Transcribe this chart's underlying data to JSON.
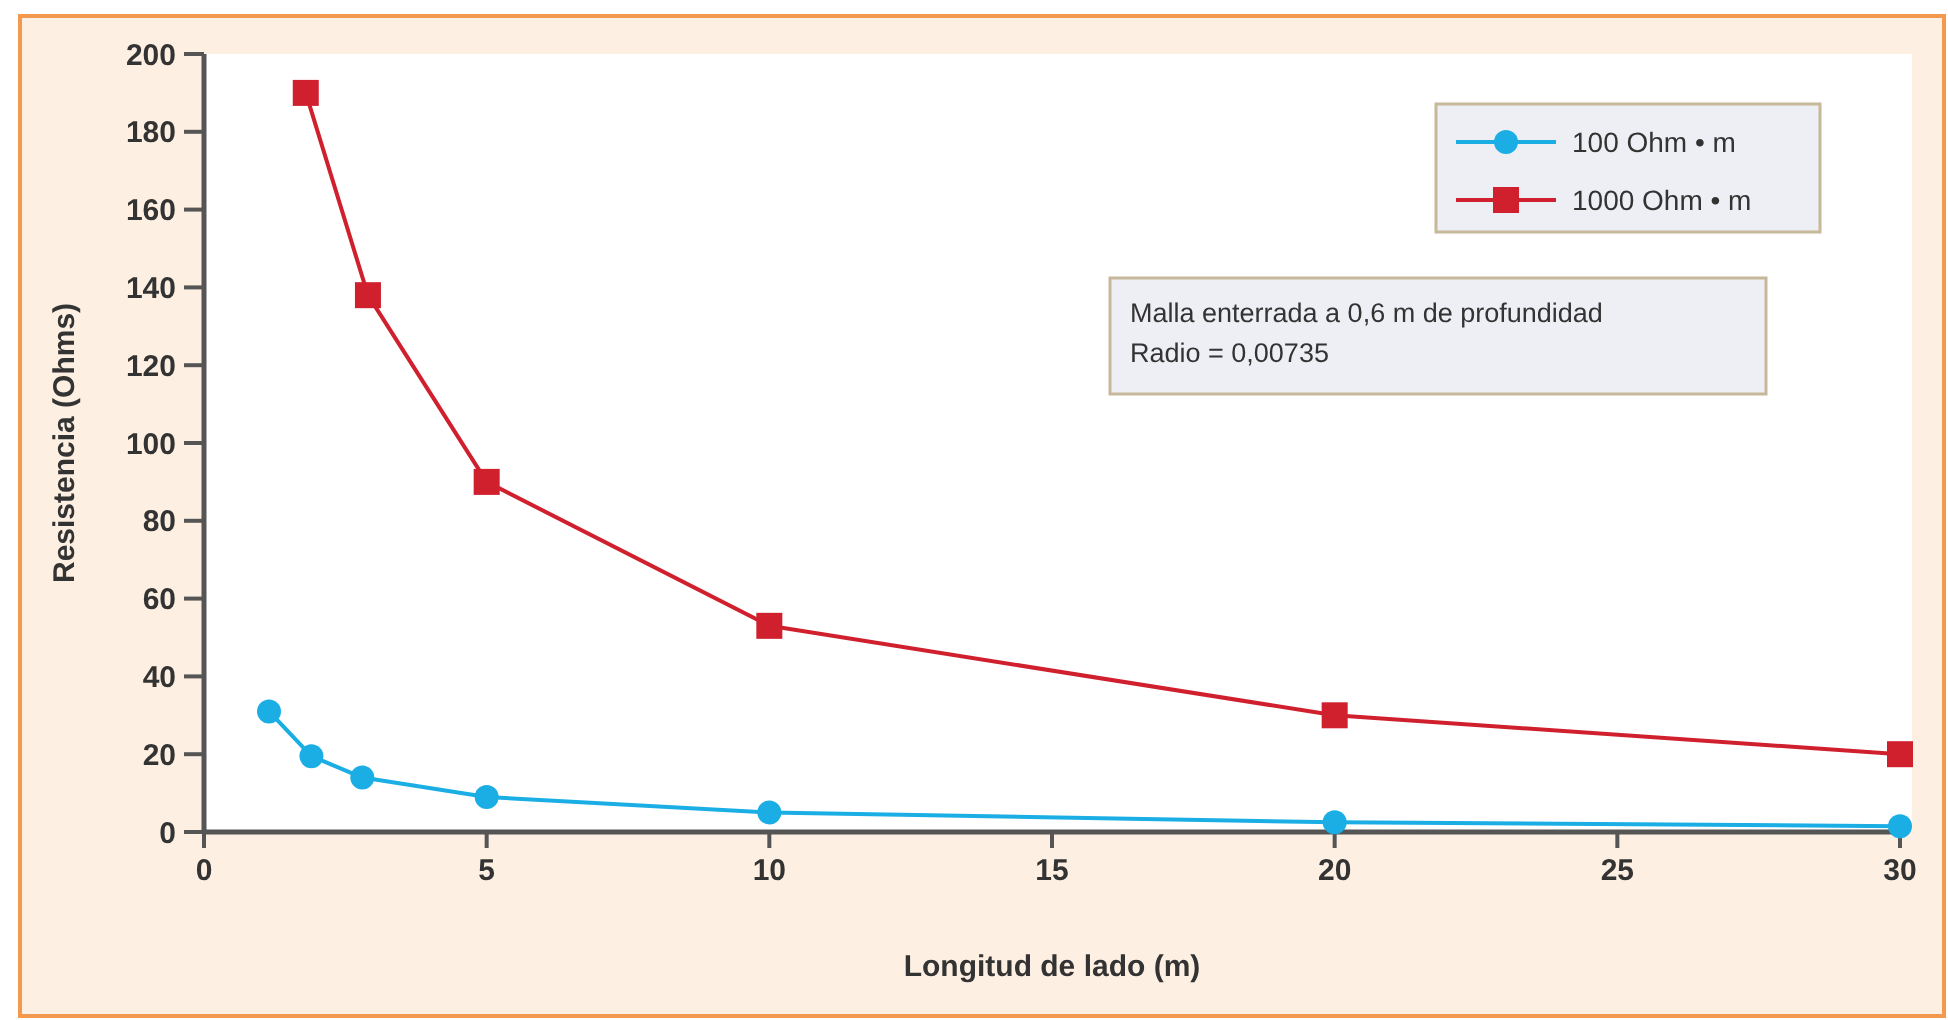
{
  "chart_data": {
    "type": "line",
    "xlabel": "Longitud de lado (m)",
    "ylabel": "Resistencia (Ohms)",
    "xlim": [
      0,
      30
    ],
    "xticks": [
      0,
      5,
      10,
      15,
      20,
      25,
      30
    ],
    "ylim": [
      0,
      200
    ],
    "yticks": [
      0,
      20,
      40,
      60,
      80,
      100,
      120,
      140,
      160,
      180,
      200
    ],
    "series": [
      {
        "name": "100 Ohm • m",
        "color": "#1aaee5",
        "marker": "circle",
        "x": [
          1.15,
          1.9,
          2.8,
          5,
          10,
          20,
          30
        ],
        "values": [
          31,
          19.5,
          14,
          9,
          5,
          2.5,
          1.5
        ]
      },
      {
        "name": "1000 Ohm • m",
        "color": "#d0202e",
        "marker": "square",
        "x": [
          1.8,
          2.9,
          5,
          10,
          20,
          30
        ],
        "values": [
          190,
          138,
          90,
          53,
          30,
          20
        ]
      }
    ],
    "annotations": [
      "Malla enterrada a 0,6 m de profundidad\nRadio = 0,00735"
    ],
    "legend": "top right",
    "grid": false
  }
}
